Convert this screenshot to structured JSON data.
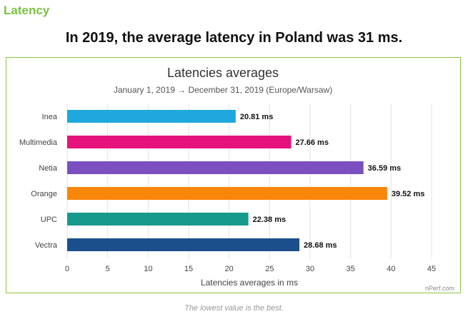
{
  "section_title": "Latency",
  "headline": "In 2019, the average latency in Poland was 31 ms.",
  "footnote": "The lowest value is the best.",
  "chart_data": {
    "type": "bar",
    "orientation": "horizontal",
    "title": "Latencies averages",
    "subtitle": "January 1, 2019 → December 31, 2019 (Europe/Warsaw)",
    "categories": [
      "Inea",
      "Multimedia",
      "Netia",
      "Orange",
      "UPC",
      "Vectra"
    ],
    "values": [
      20.81,
      27.66,
      36.59,
      39.52,
      22.38,
      28.68
    ],
    "value_labels": [
      "20.81 ms",
      "27.66 ms",
      "36.59 ms",
      "39.52 ms",
      "22.38 ms",
      "28.68 ms"
    ],
    "colors": [
      "#1fa8dd",
      "#e5127c",
      "#7b4fbf",
      "#f7860b",
      "#17998c",
      "#1a4f8b"
    ],
    "xlabel": "Latencies averages in ms",
    "ylabel": "",
    "xlim": [
      0,
      45
    ],
    "xticks": [
      "0",
      "5",
      "10",
      "15",
      "20",
      "25",
      "30",
      "35",
      "40",
      "45"
    ],
    "grid": true,
    "credit": "nPerf.com"
  }
}
